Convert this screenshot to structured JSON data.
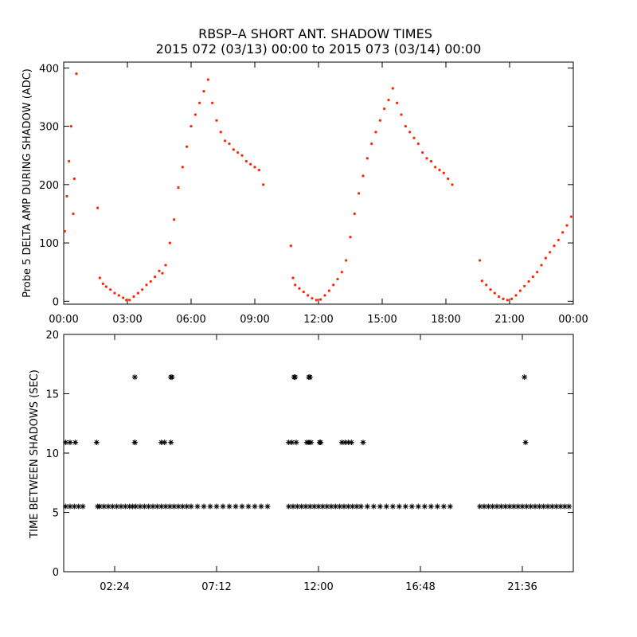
{
  "colors": {
    "background": "#ffffff",
    "axes": "#000000",
    "top_points": "#ff2200",
    "bottom_points": "#000000"
  },
  "chart_data": [
    {
      "panel": "top",
      "type": "scatter",
      "title_line1": "RBSP–A SHORT ANT. SHADOW TIMES",
      "title_line2": "2015 072 (03/13) 00:00 to 2015 073 (03/14) 00:00",
      "ylabel": "Probe 5 DELTA AMP DURING SHADOW (ADC)",
      "xlabel": "",
      "xlim": [
        0,
        24
      ],
      "ylim": [
        -5,
        410
      ],
      "xticks": [
        0,
        3,
        6,
        9,
        12,
        15,
        18,
        21,
        24
      ],
      "xtick_labels": [
        "00:00",
        "03:00",
        "06:00",
        "09:00",
        "12:00",
        "15:00",
        "18:00",
        "21:00",
        "00:00"
      ],
      "yticks": [
        0,
        100,
        200,
        300,
        400
      ],
      "ytick_labels": [
        "0",
        "100",
        "200",
        "300",
        "400"
      ],
      "series": [
        {
          "name": "Probe 5 delta amp",
          "color": "#ff2200",
          "x": [
            0.05,
            0.15,
            0.25,
            0.35,
            0.45,
            0.5,
            0.6,
            1.6,
            1.7,
            1.85,
            2.0,
            2.2,
            2.4,
            2.6,
            2.8,
            2.95,
            3.1,
            3.3,
            3.5,
            3.7,
            3.9,
            4.1,
            4.3,
            4.5,
            4.65,
            4.8,
            5.0,
            5.2,
            5.4,
            5.6,
            5.8,
            6.0,
            6.2,
            6.4,
            6.6,
            6.8,
            7.0,
            7.2,
            7.4,
            7.6,
            7.8,
            8.0,
            8.2,
            8.4,
            8.6,
            8.8,
            9.0,
            9.2,
            9.4,
            10.7,
            10.8,
            10.9,
            11.1,
            11.3,
            11.5,
            11.7,
            11.9,
            12.1,
            12.3,
            12.5,
            12.7,
            12.9,
            13.1,
            13.3,
            13.5,
            13.7,
            13.9,
            14.1,
            14.3,
            14.5,
            14.7,
            14.9,
            15.1,
            15.3,
            15.5,
            15.7,
            15.9,
            16.1,
            16.3,
            16.5,
            16.7,
            16.9,
            17.1,
            17.3,
            17.5,
            17.7,
            17.9,
            18.1,
            18.3,
            19.6,
            19.7,
            19.9,
            20.1,
            20.3,
            20.5,
            20.7,
            20.9,
            21.1,
            21.3,
            21.5,
            21.7,
            21.9,
            22.1,
            22.3,
            22.5,
            22.7,
            22.9,
            23.1,
            23.3,
            23.5,
            23.7,
            23.9
          ],
          "y": [
            120,
            180,
            240,
            300,
            150,
            210,
            390,
            160,
            40,
            30,
            25,
            20,
            14,
            10,
            6,
            2,
            2,
            8,
            14,
            20,
            28,
            34,
            42,
            52,
            48,
            62,
            100,
            140,
            195,
            230,
            265,
            300,
            320,
            340,
            360,
            380,
            340,
            310,
            290,
            275,
            270,
            260,
            255,
            250,
            240,
            235,
            230,
            225,
            200,
            95,
            40,
            28,
            22,
            16,
            10,
            5,
            2,
            3,
            10,
            18,
            28,
            38,
            50,
            70,
            110,
            150,
            185,
            215,
            245,
            270,
            290,
            310,
            330,
            345,
            365,
            340,
            320,
            300,
            290,
            280,
            270,
            255,
            245,
            240,
            230,
            225,
            220,
            210,
            200,
            70,
            35,
            28,
            20,
            14,
            8,
            4,
            2,
            4,
            10,
            18,
            26,
            34,
            42,
            50,
            62,
            74,
            84,
            95,
            105,
            118,
            130,
            145
          ]
        }
      ]
    },
    {
      "panel": "bottom",
      "type": "scatter",
      "title": "",
      "ylabel": "TIME BETWEEN SHADOWS (SEC)",
      "xlabel": "",
      "xlim": [
        0,
        24
      ],
      "ylim": [
        0,
        20
      ],
      "xticks": [
        2.4,
        7.2,
        12.0,
        16.8,
        21.6
      ],
      "xtick_labels": [
        "02:24",
        "07:12",
        "12:00",
        "16:48",
        "21:36"
      ],
      "yticks": [
        0,
        5,
        10,
        15,
        20
      ],
      "ytick_labels": [
        "0",
        "5",
        "10",
        "15",
        "20"
      ],
      "series": [
        {
          "name": "Time between shadows",
          "color": "#000000",
          "x": [
            0.1,
            0.3,
            0.5,
            0.7,
            0.9,
            1.6,
            1.7,
            1.9,
            2.1,
            2.3,
            2.5,
            2.7,
            2.9,
            3.1,
            3.25,
            3.4,
            3.6,
            3.8,
            4.0,
            4.2,
            4.4,
            4.6,
            4.8,
            5.0,
            5.2,
            5.4,
            5.6,
            5.8,
            6.0,
            6.3,
            6.6,
            6.9,
            7.2,
            7.5,
            7.8,
            8.1,
            8.4,
            8.7,
            9.0,
            9.3,
            9.6,
            10.6,
            10.8,
            11.0,
            11.2,
            11.4,
            11.6,
            11.8,
            12.0,
            12.2,
            12.4,
            12.6,
            12.8,
            13.0,
            13.2,
            13.4,
            13.6,
            13.8,
            14.0,
            14.3,
            14.6,
            14.9,
            15.2,
            15.5,
            15.8,
            16.1,
            16.4,
            16.7,
            17.0,
            17.3,
            17.6,
            17.9,
            18.2,
            19.6,
            19.8,
            20.0,
            20.2,
            20.4,
            20.6,
            20.8,
            21.0,
            21.2,
            21.4,
            21.6,
            21.8,
            22.0,
            22.2,
            22.4,
            22.6,
            22.8,
            23.0,
            23.2,
            23.4,
            23.6,
            23.8,
            3.35,
            3.35,
            5.05,
            5.1,
            10.85,
            10.9,
            11.55,
            11.6,
            0.1,
            0.3,
            0.55,
            1.55,
            3.35,
            4.6,
            4.75,
            5.05,
            10.6,
            10.75,
            10.95,
            11.45,
            11.55,
            11.65,
            12.05,
            12.1,
            13.1,
            13.25,
            13.4,
            13.55,
            14.1,
            21.7,
            21.75
          ],
          "y": [
            5.5,
            5.5,
            5.5,
            5.5,
            5.5,
            5.5,
            5.5,
            5.5,
            5.5,
            5.5,
            5.5,
            5.5,
            5.5,
            5.5,
            5.5,
            5.5,
            5.5,
            5.5,
            5.5,
            5.5,
            5.5,
            5.5,
            5.5,
            5.5,
            5.5,
            5.5,
            5.5,
            5.5,
            5.5,
            5.5,
            5.5,
            5.5,
            5.5,
            5.5,
            5.5,
            5.5,
            5.5,
            5.5,
            5.5,
            5.5,
            5.5,
            5.5,
            5.5,
            5.5,
            5.5,
            5.5,
            5.5,
            5.5,
            5.5,
            5.5,
            5.5,
            5.5,
            5.5,
            5.5,
            5.5,
            5.5,
            5.5,
            5.5,
            5.5,
            5.5,
            5.5,
            5.5,
            5.5,
            5.5,
            5.5,
            5.5,
            5.5,
            5.5,
            5.5,
            5.5,
            5.5,
            5.5,
            5.5,
            5.5,
            5.5,
            5.5,
            5.5,
            5.5,
            5.5,
            5.5,
            5.5,
            5.5,
            5.5,
            5.5,
            5.5,
            5.5,
            5.5,
            5.5,
            5.5,
            5.5,
            5.5,
            5.5,
            5.5,
            5.5,
            5.5,
            16.4,
            10.9,
            16.4,
            16.4,
            16.4,
            16.4,
            16.4,
            16.4,
            10.9,
            10.9,
            10.9,
            10.9,
            10.9,
            10.9,
            10.9,
            10.9,
            10.9,
            10.9,
            10.9,
            10.9,
            10.9,
            10.9,
            10.9,
            10.9,
            10.9,
            10.9,
            10.9,
            10.9,
            10.9,
            16.4,
            10.9
          ]
        }
      ]
    }
  ]
}
